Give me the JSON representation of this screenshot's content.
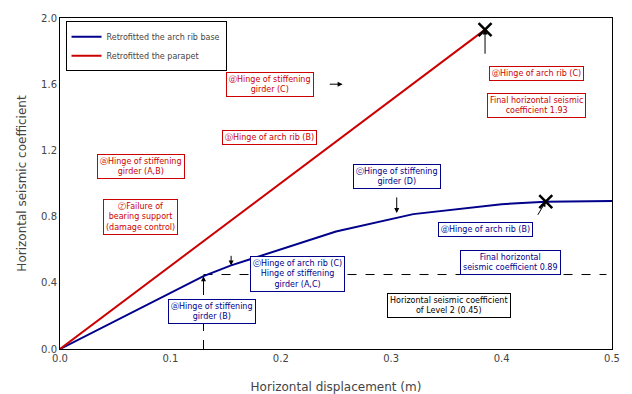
{
  "chart_data": {
    "type": "line",
    "xlabel": "Horizontal displacement (m)",
    "ylabel": "Horizontal seismic coefficient",
    "xlim": [
      0.0,
      0.5
    ],
    "ylim": [
      0.0,
      2.0
    ],
    "xticks": [
      {
        "value": 0.0,
        "label": "0.0"
      },
      0.1,
      0.2,
      0.3,
      0.4,
      0.5
    ],
    "yticks": [
      {
        "value": 0.0,
        "label": "0.0"
      },
      0.4,
      0.8,
      1.2,
      1.6,
      {
        "value": 2.0,
        "label": "2.0"
      }
    ],
    "grid": false,
    "legend": "upper left",
    "series": [
      {
        "name": "Retrofitted the arch rib base",
        "color": "#00008B",
        "x": [
          0.0,
          0.13,
          0.155,
          0.19,
          0.25,
          0.32,
          0.4,
          0.44,
          0.5
        ],
        "values": [
          0.0,
          0.44,
          0.505,
          0.58,
          0.71,
          0.815,
          0.875,
          0.89,
          0.895
        ]
      },
      {
        "name": "Retrofitted the parapet",
        "color": "#CC0000",
        "x": [
          0.0,
          0.385
        ],
        "values": [
          0.0,
          1.93
        ]
      }
    ],
    "points": [
      {
        "x": 0.44,
        "y": 0.89,
        "marker": "x",
        "color": "black"
      },
      {
        "x": 0.385,
        "y": 1.93,
        "marker": "x",
        "color": "black"
      }
    ],
    "reference_lines": [
      {
        "x": [
          0.13,
          0.495
        ],
        "y": [
          0.45,
          0.45
        ],
        "line_style": "dashed",
        "color": "black"
      },
      {
        "x": [
          0.13,
          0.13
        ],
        "y": [
          0.0,
          0.44
        ],
        "line_style": "dashed",
        "color": "black"
      }
    ],
    "annotations": [
      {
        "text": "ⓓHinge of stiffening\ngirder (C)",
        "color": "#CC0000"
      },
      {
        "text": "ⓑHinge of arch rib (B)",
        "color": "#CC0000"
      },
      {
        "text": "ⓐHinge of stiffening\ngirder (A,B)",
        "color": "#CC0000"
      },
      {
        "text": "ⓏFailure of\nbearing support\n(damage control)",
        "color": "#CC0000"
      },
      {
        "text": "ⓓHinge of arch rib (C)",
        "color": "#CC0000"
      },
      {
        "text": "Final horizontal seismic\ncoefficient 1.93",
        "color": "#CC0000"
      },
      {
        "text": "ⓒHinge of arch rib (C)\nHinge of stiffening\ngirder (A,C)",
        "color": "#00008B"
      },
      {
        "text": "ⓐHinge of stiffening\ngirder (B)",
        "color": "#00008B"
      },
      {
        "text": "ⓒHinge of stiffening\ngirder (D)",
        "color": "#00008B"
      },
      {
        "text": "ⓓHinge of arch rib (B)",
        "color": "#00008B"
      },
      {
        "text": "Final horizontal\nseismic coefficient 0.89",
        "color": "#00008B"
      },
      {
        "text": "Horizontal seismic coefficient\nof Level 2 (0.45)",
        "color": "black"
      }
    ]
  }
}
